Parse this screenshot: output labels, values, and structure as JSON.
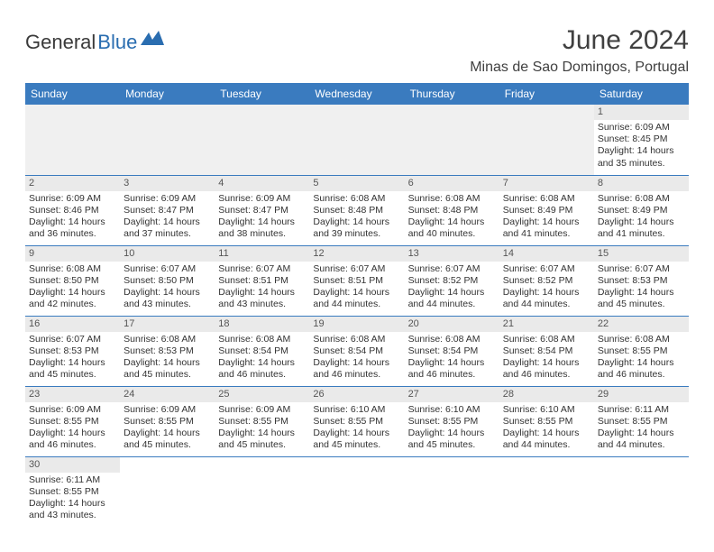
{
  "brand": {
    "general": "General",
    "blue": "Blue",
    "mark_color": "#2a6db0"
  },
  "header": {
    "title": "June 2024",
    "location": "Minas de Sao Domingos, Portugal",
    "title_color": "#404040",
    "title_fontsize": 30,
    "location_fontsize": 16
  },
  "colors": {
    "header_row_bg": "#3a7bbf",
    "header_row_fg": "#ffffff",
    "daynum_bg": "#eaeaea",
    "row_border": "#3a7bbf",
    "empty_bg": "#f0f0f0"
  },
  "dayNames": [
    "Sunday",
    "Monday",
    "Tuesday",
    "Wednesday",
    "Thursday",
    "Friday",
    "Saturday"
  ],
  "weeks": [
    [
      null,
      null,
      null,
      null,
      null,
      null,
      {
        "n": "1",
        "sr": "Sunrise: 6:09 AM",
        "ss": "Sunset: 8:45 PM",
        "dl1": "Daylight: 14 hours",
        "dl2": "and 35 minutes."
      }
    ],
    [
      {
        "n": "2",
        "sr": "Sunrise: 6:09 AM",
        "ss": "Sunset: 8:46 PM",
        "dl1": "Daylight: 14 hours",
        "dl2": "and 36 minutes."
      },
      {
        "n": "3",
        "sr": "Sunrise: 6:09 AM",
        "ss": "Sunset: 8:47 PM",
        "dl1": "Daylight: 14 hours",
        "dl2": "and 37 minutes."
      },
      {
        "n": "4",
        "sr": "Sunrise: 6:09 AM",
        "ss": "Sunset: 8:47 PM",
        "dl1": "Daylight: 14 hours",
        "dl2": "and 38 minutes."
      },
      {
        "n": "5",
        "sr": "Sunrise: 6:08 AM",
        "ss": "Sunset: 8:48 PM",
        "dl1": "Daylight: 14 hours",
        "dl2": "and 39 minutes."
      },
      {
        "n": "6",
        "sr": "Sunrise: 6:08 AM",
        "ss": "Sunset: 8:48 PM",
        "dl1": "Daylight: 14 hours",
        "dl2": "and 40 minutes."
      },
      {
        "n": "7",
        "sr": "Sunrise: 6:08 AM",
        "ss": "Sunset: 8:49 PM",
        "dl1": "Daylight: 14 hours",
        "dl2": "and 41 minutes."
      },
      {
        "n": "8",
        "sr": "Sunrise: 6:08 AM",
        "ss": "Sunset: 8:49 PM",
        "dl1": "Daylight: 14 hours",
        "dl2": "and 41 minutes."
      }
    ],
    [
      {
        "n": "9",
        "sr": "Sunrise: 6:08 AM",
        "ss": "Sunset: 8:50 PM",
        "dl1": "Daylight: 14 hours",
        "dl2": "and 42 minutes."
      },
      {
        "n": "10",
        "sr": "Sunrise: 6:07 AM",
        "ss": "Sunset: 8:50 PM",
        "dl1": "Daylight: 14 hours",
        "dl2": "and 43 minutes."
      },
      {
        "n": "11",
        "sr": "Sunrise: 6:07 AM",
        "ss": "Sunset: 8:51 PM",
        "dl1": "Daylight: 14 hours",
        "dl2": "and 43 minutes."
      },
      {
        "n": "12",
        "sr": "Sunrise: 6:07 AM",
        "ss": "Sunset: 8:51 PM",
        "dl1": "Daylight: 14 hours",
        "dl2": "and 44 minutes."
      },
      {
        "n": "13",
        "sr": "Sunrise: 6:07 AM",
        "ss": "Sunset: 8:52 PM",
        "dl1": "Daylight: 14 hours",
        "dl2": "and 44 minutes."
      },
      {
        "n": "14",
        "sr": "Sunrise: 6:07 AM",
        "ss": "Sunset: 8:52 PM",
        "dl1": "Daylight: 14 hours",
        "dl2": "and 44 minutes."
      },
      {
        "n": "15",
        "sr": "Sunrise: 6:07 AM",
        "ss": "Sunset: 8:53 PM",
        "dl1": "Daylight: 14 hours",
        "dl2": "and 45 minutes."
      }
    ],
    [
      {
        "n": "16",
        "sr": "Sunrise: 6:07 AM",
        "ss": "Sunset: 8:53 PM",
        "dl1": "Daylight: 14 hours",
        "dl2": "and 45 minutes."
      },
      {
        "n": "17",
        "sr": "Sunrise: 6:08 AM",
        "ss": "Sunset: 8:53 PM",
        "dl1": "Daylight: 14 hours",
        "dl2": "and 45 minutes."
      },
      {
        "n": "18",
        "sr": "Sunrise: 6:08 AM",
        "ss": "Sunset: 8:54 PM",
        "dl1": "Daylight: 14 hours",
        "dl2": "and 46 minutes."
      },
      {
        "n": "19",
        "sr": "Sunrise: 6:08 AM",
        "ss": "Sunset: 8:54 PM",
        "dl1": "Daylight: 14 hours",
        "dl2": "and 46 minutes."
      },
      {
        "n": "20",
        "sr": "Sunrise: 6:08 AM",
        "ss": "Sunset: 8:54 PM",
        "dl1": "Daylight: 14 hours",
        "dl2": "and 46 minutes."
      },
      {
        "n": "21",
        "sr": "Sunrise: 6:08 AM",
        "ss": "Sunset: 8:54 PM",
        "dl1": "Daylight: 14 hours",
        "dl2": "and 46 minutes."
      },
      {
        "n": "22",
        "sr": "Sunrise: 6:08 AM",
        "ss": "Sunset: 8:55 PM",
        "dl1": "Daylight: 14 hours",
        "dl2": "and 46 minutes."
      }
    ],
    [
      {
        "n": "23",
        "sr": "Sunrise: 6:09 AM",
        "ss": "Sunset: 8:55 PM",
        "dl1": "Daylight: 14 hours",
        "dl2": "and 46 minutes."
      },
      {
        "n": "24",
        "sr": "Sunrise: 6:09 AM",
        "ss": "Sunset: 8:55 PM",
        "dl1": "Daylight: 14 hours",
        "dl2": "and 45 minutes."
      },
      {
        "n": "25",
        "sr": "Sunrise: 6:09 AM",
        "ss": "Sunset: 8:55 PM",
        "dl1": "Daylight: 14 hours",
        "dl2": "and 45 minutes."
      },
      {
        "n": "26",
        "sr": "Sunrise: 6:10 AM",
        "ss": "Sunset: 8:55 PM",
        "dl1": "Daylight: 14 hours",
        "dl2": "and 45 minutes."
      },
      {
        "n": "27",
        "sr": "Sunrise: 6:10 AM",
        "ss": "Sunset: 8:55 PM",
        "dl1": "Daylight: 14 hours",
        "dl2": "and 45 minutes."
      },
      {
        "n": "28",
        "sr": "Sunrise: 6:10 AM",
        "ss": "Sunset: 8:55 PM",
        "dl1": "Daylight: 14 hours",
        "dl2": "and 44 minutes."
      },
      {
        "n": "29",
        "sr": "Sunrise: 6:11 AM",
        "ss": "Sunset: 8:55 PM",
        "dl1": "Daylight: 14 hours",
        "dl2": "and 44 minutes."
      }
    ],
    [
      {
        "n": "30",
        "sr": "Sunrise: 6:11 AM",
        "ss": "Sunset: 8:55 PM",
        "dl1": "Daylight: 14 hours",
        "dl2": "and 43 minutes."
      },
      null,
      null,
      null,
      null,
      null,
      null
    ]
  ]
}
